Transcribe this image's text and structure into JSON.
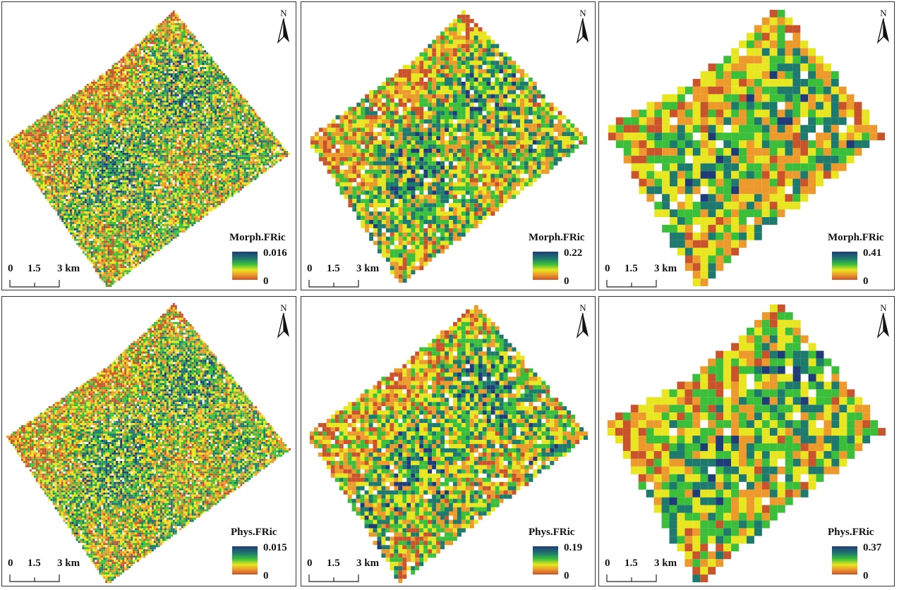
{
  "panels": [
    {
      "id": "p1",
      "legend_title": "Morph.FRic",
      "max": "0.016",
      "min": "0"
    },
    {
      "id": "p2",
      "legend_title": "Morph.FRic",
      "max": "0.22",
      "min": "0"
    },
    {
      "id": "p3",
      "legend_title": "Morph.FRic",
      "max": "0.41",
      "min": "0"
    },
    {
      "id": "p4",
      "legend_title": "Phys.FRic",
      "max": "0.015",
      "min": "0"
    },
    {
      "id": "p5",
      "legend_title": "Phys.FRic",
      "max": "0.19",
      "min": "0"
    },
    {
      "id": "p6",
      "legend_title": "Phys.FRic",
      "max": "0.37",
      "min": "0"
    }
  ],
  "north_label": "N",
  "scale": {
    "t0": "0",
    "t1": "1.5",
    "t2": "3 km"
  },
  "colors": {
    "high": "#1f3c78",
    "mid_high": "#1f7a6e",
    "mid": "#3bbf3a",
    "mid_low": "#e8e620",
    "low_mid": "#eb9a2b",
    "low": "#c9542b"
  }
}
